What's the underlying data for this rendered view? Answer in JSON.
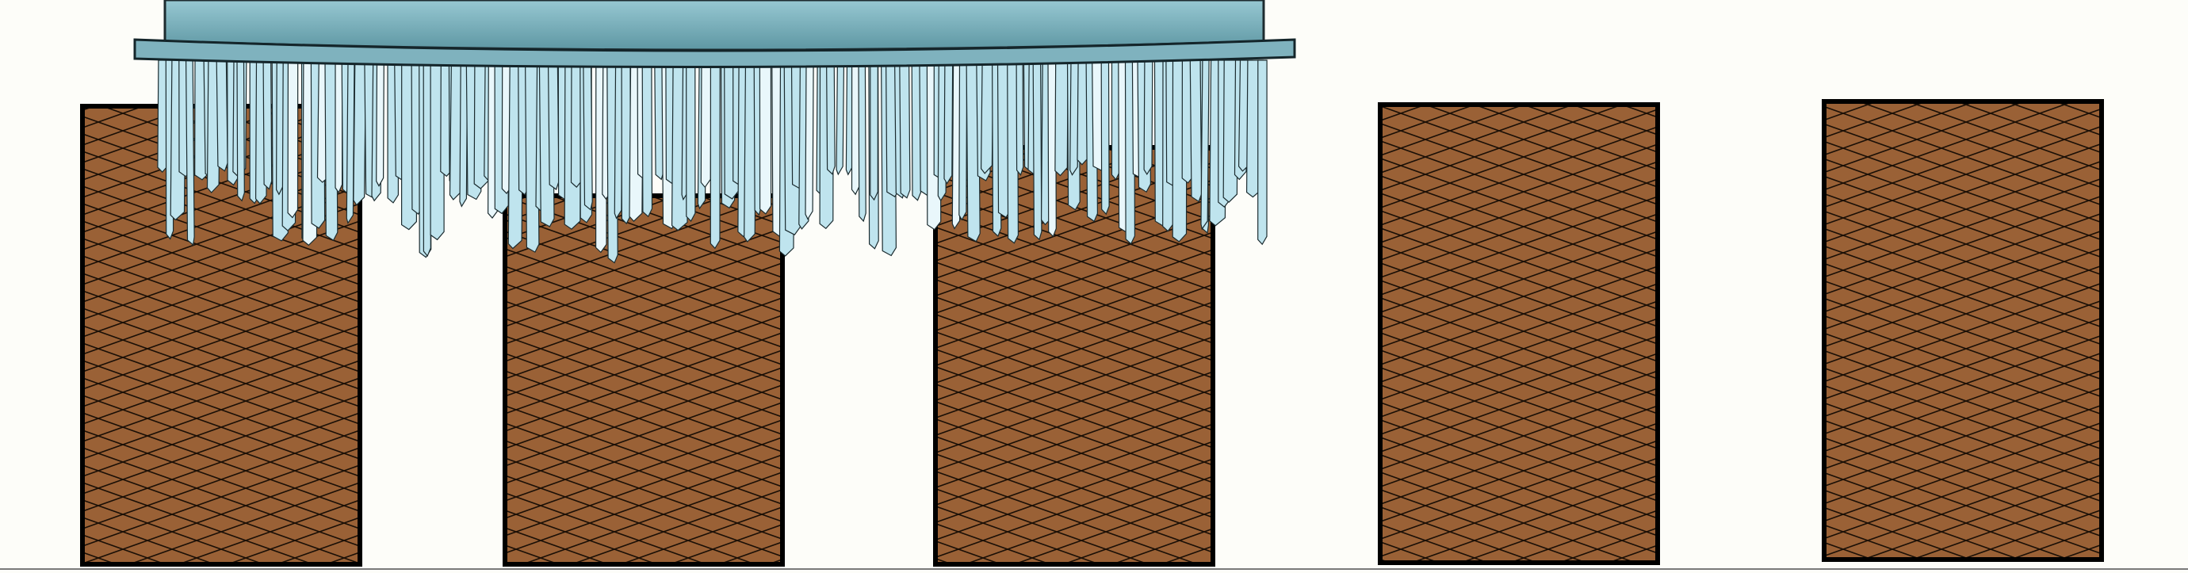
{
  "colors": {
    "background": "#fdfdf9",
    "block_fill": "#9a6136",
    "block_stroke": "#000000",
    "crosshatch": "#1a0f06",
    "tank_top": "#97c8d2",
    "tank_bottom": "#5e97a3",
    "plate": "#7fb2be",
    "bristle_fill": "#bfe4ee",
    "bristle_light": "#e9f7fb",
    "bristle_stroke": "#1c2c30",
    "ground_line": "#7a7a7a"
  },
  "blocks": [
    {
      "name": "block-1",
      "pattern": "crosshatch"
    },
    {
      "name": "block-2",
      "pattern": "crosshatch"
    },
    {
      "name": "block-3",
      "pattern": "crosshatch"
    },
    {
      "name": "block-4",
      "pattern": "crosshatch"
    },
    {
      "name": "block-5",
      "pattern": "crosshatch"
    }
  ],
  "tool": {
    "parts": [
      "tank-body",
      "base-plate",
      "bristles"
    ]
  }
}
